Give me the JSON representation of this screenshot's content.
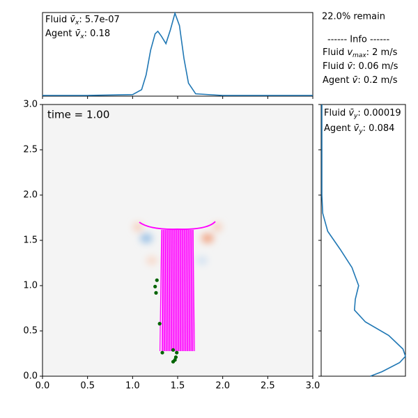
{
  "chart_data": [
    {
      "type": "scatter",
      "label": "time = 1.00",
      "xlim": [
        0,
        3
      ],
      "ylim": [
        0,
        3
      ],
      "xticks": [
        {
          "value": 0,
          "label": "0.0"
        },
        0.5,
        {
          "value": 1,
          "label": "1.0"
        },
        1.5,
        {
          "value": 2,
          "label": "2.0"
        },
        2.5,
        {
          "value": 3,
          "label": "3.0"
        }
      ],
      "yticks": [
        {
          "value": 0,
          "label": "0.0"
        },
        0.5,
        {
          "value": 1,
          "label": "1.0"
        },
        1.5,
        {
          "value": 2,
          "label": "2.0"
        },
        2.5,
        {
          "value": 3,
          "label": "3.0"
        }
      ],
      "series": [
        {
          "color": "#006400",
          "x": [
            1.27,
            1.25,
            1.26,
            1.3,
            1.33,
            1.45,
            1.49,
            1.48,
            1.47,
            1.45
          ],
          "values": [
            1.06,
            0.99,
            0.92,
            0.58,
            0.26,
            0.29,
            0.26,
            0.21,
            0.18,
            0.16
          ]
        }
      ]
    },
    {
      "type": "line",
      "color": "#1f77b4",
      "xlim": [
        0,
        3
      ],
      "ylim": [
        0,
        1
      ],
      "x": [
        0,
        0.5,
        1.0,
        1.1,
        1.15,
        1.2,
        1.25,
        1.28,
        1.32,
        1.37,
        1.42,
        1.47,
        1.52,
        1.57,
        1.62,
        1.7,
        2.0,
        3.0
      ],
      "values": [
        0,
        0,
        0.01,
        0.07,
        0.25,
        0.55,
        0.75,
        0.78,
        0.72,
        0.63,
        0.8,
        1.0,
        0.85,
        0.45,
        0.15,
        0.02,
        0,
        0
      ],
      "annotations": [
        {
          "text": "Fluid ",
          "math": "v̄",
          "sub": "x",
          "rest": ": 5.7e-07"
        },
        {
          "text": "Agent ",
          "math": "v̄",
          "sub": "x",
          "rest": ": 0.18"
        }
      ]
    },
    {
      "type": "hline",
      "color": "#1f77b4",
      "xlim": [
        0,
        1
      ],
      "ylim": [
        0,
        3
      ],
      "y": [
        3.0,
        2.0,
        1.8,
        1.6,
        1.4,
        1.2,
        1.0,
        0.85,
        0.73,
        0.6,
        0.45,
        0.3,
        0.22,
        0.15,
        0.05,
        0
      ],
      "values": [
        0,
        0,
        0.01,
        0.07,
        0.22,
        0.36,
        0.44,
        0.4,
        0.39,
        0.52,
        0.8,
        0.97,
        1.0,
        0.93,
        0.72,
        0.58
      ],
      "annotations": [
        {
          "text": "Fluid ",
          "math": "v̄",
          "sub": "y",
          "rest": ": 0.00019"
        },
        {
          "text": "Agent ",
          "math": "v̄",
          "sub": "y",
          "rest": ": 0.084"
        }
      ]
    }
  ],
  "info": {
    "remain": "22.0% remain",
    "header": "------ Info ------",
    "lines": [
      {
        "text": "Fluid ",
        "math": "v",
        "sub": "max",
        "rest": ": 2 m/s"
      },
      {
        "text": "Fluid ",
        "math": "v̄",
        "sub": "",
        "rest": ": 0.06 m/s"
      },
      {
        "text": "Agent ",
        "math": "v̄",
        "sub": "",
        "rest": ": 0.2 m/s"
      }
    ]
  }
}
